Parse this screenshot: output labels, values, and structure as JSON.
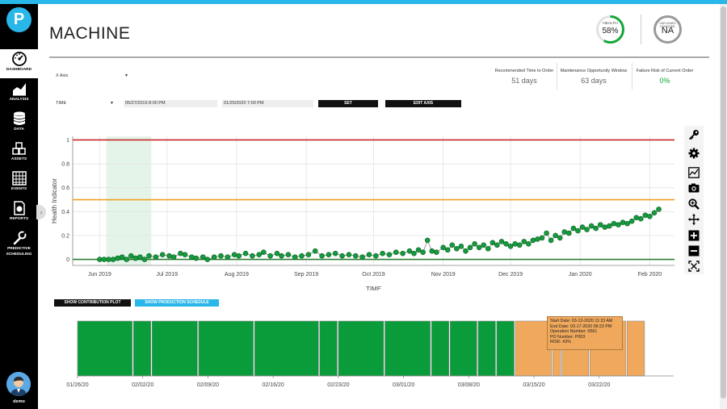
{
  "app": {
    "logo_letter": "P",
    "page_title": "MACHINE",
    "user_name": "demo",
    "accent_color": "#29b6e8"
  },
  "sidebar": {
    "items": [
      {
        "label": "DASHBOARD",
        "icon": "dashboard-gauge-icon"
      },
      {
        "label": "ANALYSIS",
        "icon": "analysis-chart-icon"
      },
      {
        "label": "DATA",
        "icon": "database-icon"
      },
      {
        "label": "ASSETS",
        "icon": "cubes-icon"
      },
      {
        "label": "EVENTS",
        "icon": "calendar-grid-icon"
      },
      {
        "label": "REPORTS",
        "icon": "report-icon"
      },
      {
        "label": "PREDICTIVE",
        "label2": "SCHEDULING",
        "icon": "wrench-icon"
      }
    ]
  },
  "header": {
    "health": {
      "label": "HEALTH",
      "value": "58%",
      "fraction": 0.58,
      "color": "#15a83a"
    },
    "risk": {
      "label": "UNPLANNED DOWNTIME",
      "value": "NA",
      "color": "#999999"
    }
  },
  "metrics": [
    {
      "label": "Recommended Time to Order",
      "value": "51 days"
    },
    {
      "label": "Maintenance Opportunity Window",
      "value": "63 days"
    },
    {
      "label": "Failure Risk of Current Order",
      "value": "0%"
    }
  ],
  "controls": {
    "x_axis_select": "X Axis",
    "time_select": "TIME",
    "start_date": "05/27/2019 8:00 PM",
    "end_date": "01/25/2020 7:00 PM",
    "set_button": "SET",
    "edit_axis_button": "EDIT AXIS",
    "contribution_button": "SHOW CONTRIBUTION PLOT",
    "production_button": "SHOW PRODUCTION SCHEDULE"
  },
  "toolbar": [
    "key-icon",
    "gear-icon",
    "line-chart-icon",
    "camera-icon",
    "zoom-in-icon",
    "pan-arrows-icon",
    "plus-icon",
    "minus-icon",
    "reset-zoom-icon"
  ],
  "chart_data": [
    {
      "type": "scatter",
      "xlabel": "TIME",
      "ylabel": "Health Indicator",
      "x_ticks": [
        "Jun 2019",
        "Jul 2019",
        "Aug 2019",
        "Sep 2019",
        "Oct 2019",
        "Nov 2019",
        "Dec 2019",
        "Jan 2020",
        "Feb 2020"
      ],
      "x_range": [
        "2019-05-20",
        "2020-02-12"
      ],
      "ylim": [
        -0.05,
        1.03
      ],
      "y_ticks": [
        0,
        0.2,
        0.4,
        0.6,
        0.8,
        1
      ],
      "thresholds": [
        {
          "value": 1.0,
          "color": "#c62828"
        },
        {
          "value": 0.5,
          "color": "#f0a020"
        },
        {
          "value": 0.0,
          "color": "#2e7d32"
        }
      ],
      "highlight_band": [
        "2019-06-04",
        "2019-06-24"
      ],
      "series": [
        {
          "marker_color": "#159a3c",
          "line_color": "#555555",
          "points": [
            [
              "2019-06-01",
              0.0
            ],
            [
              "2019-06-03",
              0.0
            ],
            [
              "2019-06-05",
              0.0
            ],
            [
              "2019-06-07",
              0.0
            ],
            [
              "2019-06-09",
              0.01
            ],
            [
              "2019-06-11",
              0.02
            ],
            [
              "2019-06-13",
              0.0
            ],
            [
              "2019-06-15",
              0.03
            ],
            [
              "2019-06-17",
              0.01
            ],
            [
              "2019-06-19",
              0.02
            ],
            [
              "2019-06-21",
              0.0
            ],
            [
              "2019-06-23",
              0.03
            ],
            [
              "2019-06-26",
              0.02
            ],
            [
              "2019-06-29",
              0.04
            ],
            [
              "2019-07-02",
              0.03
            ],
            [
              "2019-07-04",
              0.02
            ],
            [
              "2019-07-07",
              0.05
            ],
            [
              "2019-07-09",
              0.04
            ],
            [
              "2019-07-12",
              0.02
            ],
            [
              "2019-07-14",
              0.01
            ],
            [
              "2019-07-17",
              0.02
            ],
            [
              "2019-07-19",
              0.0
            ],
            [
              "2019-07-22",
              0.02
            ],
            [
              "2019-07-25",
              0.03
            ],
            [
              "2019-07-28",
              0.02
            ],
            [
              "2019-07-31",
              0.04
            ],
            [
              "2019-08-02",
              0.03
            ],
            [
              "2019-08-05",
              0.05
            ],
            [
              "2019-08-08",
              0.03
            ],
            [
              "2019-08-11",
              0.04
            ],
            [
              "2019-08-13",
              0.06
            ],
            [
              "2019-08-16",
              0.03
            ],
            [
              "2019-08-19",
              0.05
            ],
            [
              "2019-08-21",
              0.03
            ],
            [
              "2019-08-24",
              0.04
            ],
            [
              "2019-08-27",
              0.02
            ],
            [
              "2019-08-30",
              0.03
            ],
            [
              "2019-09-02",
              0.04
            ],
            [
              "2019-09-05",
              0.07
            ],
            [
              "2019-09-08",
              0.03
            ],
            [
              "2019-09-11",
              0.04
            ],
            [
              "2019-09-14",
              0.05
            ],
            [
              "2019-09-17",
              0.03
            ],
            [
              "2019-09-20",
              0.04
            ],
            [
              "2019-09-23",
              0.03
            ],
            [
              "2019-09-26",
              0.02
            ],
            [
              "2019-09-29",
              0.04
            ],
            [
              "2019-10-02",
              0.03
            ],
            [
              "2019-10-05",
              0.05
            ],
            [
              "2019-10-08",
              0.04
            ],
            [
              "2019-10-11",
              0.06
            ],
            [
              "2019-10-14",
              0.05
            ],
            [
              "2019-10-17",
              0.07
            ],
            [
              "2019-10-19",
              0.05
            ],
            [
              "2019-10-21",
              0.08
            ],
            [
              "2019-10-23",
              0.06
            ],
            [
              "2019-10-25",
              0.16
            ],
            [
              "2019-10-27",
              0.07
            ],
            [
              "2019-10-29",
              0.06
            ],
            [
              "2019-11-01",
              0.1
            ],
            [
              "2019-11-03",
              0.08
            ],
            [
              "2019-11-05",
              0.12
            ],
            [
              "2019-11-07",
              0.09
            ],
            [
              "2019-11-09",
              0.11
            ],
            [
              "2019-11-11",
              0.07
            ],
            [
              "2019-11-13",
              0.1
            ],
            [
              "2019-11-15",
              0.13
            ],
            [
              "2019-11-17",
              0.1
            ],
            [
              "2019-11-19",
              0.12
            ],
            [
              "2019-11-21",
              0.09
            ],
            [
              "2019-11-23",
              0.14
            ],
            [
              "2019-11-25",
              0.12
            ],
            [
              "2019-11-27",
              0.15
            ],
            [
              "2019-11-29",
              0.13
            ],
            [
              "2019-12-01",
              0.11
            ],
            [
              "2019-12-03",
              0.13
            ],
            [
              "2019-12-05",
              0.12
            ],
            [
              "2019-12-07",
              0.15
            ],
            [
              "2019-12-09",
              0.13
            ],
            [
              "2019-12-11",
              0.16
            ],
            [
              "2019-12-13",
              0.17
            ],
            [
              "2019-12-15",
              0.18
            ],
            [
              "2019-12-17",
              0.22
            ],
            [
              "2019-12-19",
              0.16
            ],
            [
              "2019-12-21",
              0.2
            ],
            [
              "2019-12-23",
              0.18
            ],
            [
              "2019-12-25",
              0.23
            ],
            [
              "2019-12-27",
              0.22
            ],
            [
              "2019-12-29",
              0.26
            ],
            [
              "2019-12-31",
              0.24
            ],
            [
              "2020-01-02",
              0.27
            ],
            [
              "2020-01-04",
              0.25
            ],
            [
              "2020-01-06",
              0.28
            ],
            [
              "2020-01-08",
              0.26
            ],
            [
              "2020-01-10",
              0.29
            ],
            [
              "2020-01-12",
              0.27
            ],
            [
              "2020-01-14",
              0.28
            ],
            [
              "2020-01-16",
              0.3
            ],
            [
              "2020-01-18",
              0.29
            ],
            [
              "2020-01-20",
              0.31
            ],
            [
              "2020-01-22",
              0.3
            ],
            [
              "2020-01-24",
              0.32
            ],
            [
              "2020-01-26",
              0.35
            ],
            [
              "2020-01-28",
              0.34
            ],
            [
              "2020-01-30",
              0.37
            ],
            [
              "2020-02-01",
              0.36
            ],
            [
              "2020-02-03",
              0.39
            ],
            [
              "2020-02-05",
              0.42
            ]
          ]
        }
      ]
    },
    {
      "type": "timeline",
      "x_ticks": [
        "01/26/20",
        "02/02/20",
        "02/09/20",
        "02/16/20",
        "02/23/20",
        "03/01/20",
        "03/08/20",
        "03/15/20",
        "03/22/20"
      ],
      "x_range": [
        "2020-01-26",
        "2020-03-31"
      ],
      "colors": {
        "completed": "#0a9b3a",
        "scheduled": "#f0a95c"
      },
      "orders": [
        {
          "start": "2020-01-26",
          "end": "2020-02-01",
          "status": "completed"
        },
        {
          "start": "2020-02-01",
          "end": "2020-02-03",
          "status": "completed"
        },
        {
          "start": "2020-02-03",
          "end": "2020-02-08",
          "status": "completed"
        },
        {
          "start": "2020-02-08",
          "end": "2020-02-14",
          "status": "completed"
        },
        {
          "start": "2020-02-14",
          "end": "2020-02-21",
          "status": "completed"
        },
        {
          "start": "2020-02-21",
          "end": "2020-02-23",
          "status": "completed"
        },
        {
          "start": "2020-02-23",
          "end": "2020-02-28",
          "status": "completed"
        },
        {
          "start": "2020-02-28",
          "end": "2020-03-04",
          "status": "completed"
        },
        {
          "start": "2020-03-04",
          "end": "2020-03-06",
          "status": "completed"
        },
        {
          "start": "2020-03-06",
          "end": "2020-03-09",
          "status": "completed"
        },
        {
          "start": "2020-03-09",
          "end": "2020-03-11",
          "status": "completed"
        },
        {
          "start": "2020-03-11",
          "end": "2020-03-13",
          "status": "completed"
        },
        {
          "start": "2020-03-13",
          "end": "2020-03-17",
          "status": "scheduled"
        },
        {
          "start": "2020-03-17",
          "end": "2020-03-18",
          "status": "scheduled"
        },
        {
          "start": "2020-03-18",
          "end": "2020-03-21",
          "status": "scheduled"
        },
        {
          "start": "2020-03-21",
          "end": "2020-03-25",
          "status": "scheduled"
        },
        {
          "start": "2020-03-25",
          "end": "2020-03-27",
          "status": "scheduled"
        }
      ],
      "tooltip": [
        "Start Date: 03-13-2020 11:23 AM",
        "End Date: 03-17-2020 09:23 PM",
        "Operation Number: 0561",
        "PO Number: P003",
        "RISK: 43%"
      ]
    }
  ]
}
